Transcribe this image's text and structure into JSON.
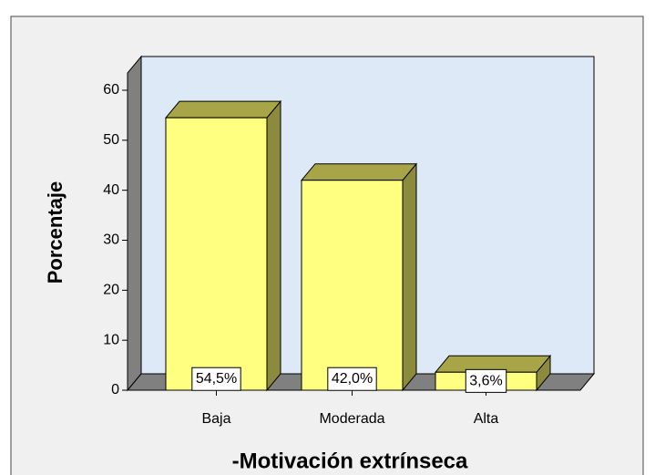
{
  "chart_data": {
    "type": "bar3d",
    "x_label": "-Motivación extrínseca",
    "y_label": "Porcentaje",
    "categories": [
      "Baja",
      "Moderada",
      "Alta"
    ],
    "values": [
      54.5,
      42.0,
      3.6
    ],
    "value_labels": [
      "54,5%",
      "42,0%",
      "3,6%"
    ],
    "color": "#ffff80",
    "ylim": [
      0,
      60
    ],
    "yticks": [
      0,
      10,
      20,
      30,
      40,
      50,
      60
    ]
  }
}
